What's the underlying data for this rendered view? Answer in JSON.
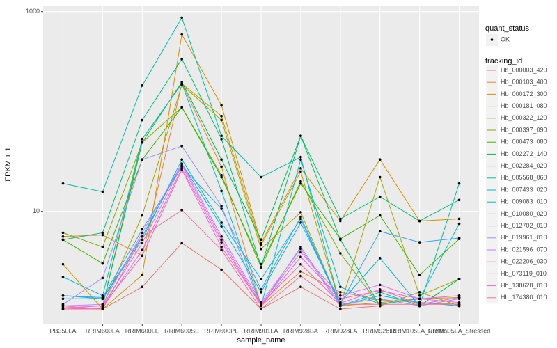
{
  "chart_data": {
    "type": "line",
    "log_y": true,
    "grid": true,
    "xlabel": "sample_name",
    "ylabel": "FPKM + 1",
    "categories": [
      "PB350LA",
      "RRIM600LA",
      "RRIM600LE",
      "RRIM600SE",
      "RRIM600PE",
      "RRIM901LA",
      "RRIM928BA",
      "RRIM928LA",
      "RRIM928LE",
      "RRIM105LA_Control",
      "RRIM105LA_Stressed"
    ],
    "ylim": [
      0.75,
      1150
    ],
    "yticks": [
      10,
      1000
    ],
    "point_color": "#000000",
    "quant_status_title": "quant_status",
    "quant_status_items": [
      "OK"
    ],
    "legend_title": "tracking_id",
    "series": [
      {
        "name": "Hb_000003_420",
        "color": "#F8766D",
        "values": [
          1.13,
          1.05,
          1.75,
          4.8,
          2.6,
          1.05,
          1.75,
          1.05,
          1.13,
          1.13,
          1.13
        ]
      },
      {
        "name": "Hb_000103_400",
        "color": "#EA8331",
        "values": [
          5.6,
          5.8,
          3.6,
          190,
          28,
          1.13,
          2.5,
          1.55,
          1.3,
          1.22,
          1.17
        ]
      },
      {
        "name": "Hb_000172_300",
        "color": "#D89000",
        "values": [
          2.95,
          1.05,
          2.3,
          590,
          115,
          4.8,
          27,
          8,
          33,
          8,
          8.4
        ]
      },
      {
        "name": "Hb_000181_080",
        "color": "#C09B00",
        "values": [
          1.13,
          1.13,
          53,
          190,
          90,
          4.6,
          25,
          1.13,
          1.22,
          1.33,
          1.37
        ]
      },
      {
        "name": "Hb_000322_120",
        "color": "#A3A500",
        "values": [
          1.13,
          1.13,
          9.1,
          185,
          82,
          4.2,
          9.8,
          1.13,
          22,
          1.43,
          2.1
        ]
      },
      {
        "name": "Hb_000397_090",
        "color": "#7CAE00",
        "values": [
          6.1,
          4.4,
          49,
          110,
          23,
          2.75,
          20,
          3.8,
          1.13,
          1.55,
          1.13
        ]
      },
      {
        "name": "Hb_000473_080",
        "color": "#39B600",
        "values": [
          5.2,
          3.0,
          33,
          110,
          22,
          2.95,
          19,
          5.3,
          9.1,
          2.3,
          5.3
        ]
      },
      {
        "name": "Hb_002272_140",
        "color": "#00BB4E",
        "values": [
          1.13,
          1.13,
          49,
          197,
          33,
          5.2,
          57,
          5.2,
          1.13,
          1.13,
          2.1
        ]
      },
      {
        "name": "Hb_002284_020",
        "color": "#00BF7D",
        "values": [
          5.2,
          6.1,
          82,
          335,
          53,
          2.75,
          57,
          8.4,
          14,
          8,
          13
        ]
      },
      {
        "name": "Hb_005568_060",
        "color": "#00C1A3",
        "values": [
          19,
          15.7,
          182,
          870,
          57,
          22,
          35,
          1.13,
          1.55,
          1.13,
          19
        ]
      },
      {
        "name": "Hb_007433_020",
        "color": "#00BFC4",
        "values": [
          2.2,
          1.43,
          53,
          190,
          16,
          1.13,
          33,
          1.75,
          1.17,
          1.33,
          7.5
        ]
      },
      {
        "name": "Hb_009083_010",
        "color": "#00BAE0",
        "values": [
          1.43,
          1.33,
          5.2,
          33,
          7.7,
          2.1,
          8.4,
          1.13,
          1.43,
          1.22,
          1.13
        ]
      },
      {
        "name": "Hb_010080_020",
        "color": "#00B0F6",
        "values": [
          1.33,
          1.33,
          5.6,
          30,
          7.1,
          1.55,
          7.7,
          1.22,
          3.4,
          1.13,
          1.13
        ]
      },
      {
        "name": "Hb_012702_010",
        "color": "#35A2FF",
        "values": [
          1.43,
          1.37,
          6.6,
          28,
          10.6,
          1.65,
          8.8,
          1.17,
          6.3,
          4.9,
          5.4
        ]
      },
      {
        "name": "Hb_019961_010",
        "color": "#9590FF",
        "values": [
          1.17,
          2.15,
          33,
          45,
          11.3,
          1.13,
          4.4,
          1.17,
          1.33,
          1.13,
          1.33
        ]
      },
      {
        "name": "Hb_021596_070",
        "color": "#C77CFF",
        "values": [
          1.13,
          1.17,
          6.1,
          30,
          5.6,
          1.22,
          4.2,
          1.13,
          1.13,
          1.13,
          1.13
        ]
      },
      {
        "name": "Hb_022206_030",
        "color": "#E76BF3",
        "values": [
          1.08,
          1.13,
          4.8,
          29,
          5.2,
          1.17,
          3.9,
          1.43,
          1.83,
          1.33,
          1.22
        ]
      },
      {
        "name": "Hb_073119_010",
        "color": "#FA62DB",
        "values": [
          1.05,
          1.08,
          4.1,
          27,
          4.9,
          1.13,
          3.5,
          1.33,
          1.6,
          1.33,
          1.43
        ]
      },
      {
        "name": "Hb_138628_010",
        "color": "#FF62BC",
        "values": [
          1.13,
          1.13,
          3.6,
          26,
          4.4,
          1.17,
          2.95,
          1.2,
          1.65,
          1.17,
          1.37
        ]
      },
      {
        "name": "Hb_174380_010",
        "color": "#FF6C91",
        "values": [
          1.05,
          1.05,
          5.6,
          10.3,
          4.1,
          1.05,
          2.25,
          1.17,
          1.17,
          1.17,
          1.17
        ]
      }
    ]
  }
}
